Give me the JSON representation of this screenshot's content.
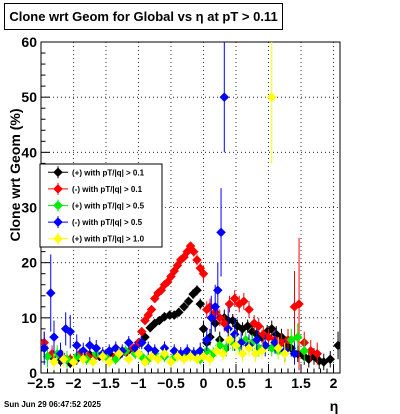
{
  "title": {
    "text": "Clone wrt Geom for Global vs    η  at pT > 0.11"
  },
  "footer": {
    "timestamp": "Sun Jun 29 06:47:52 2025"
  },
  "chart_data": {
    "type": "scatter",
    "title": "Clone wrt Geom for Global vs    η  at pT > 0.11",
    "xlabel": "η",
    "ylabel": "Clone wrt Geom (%)",
    "xlim": [
      -2.5,
      2.1
    ],
    "ylim": [
      0,
      60
    ],
    "x_ticks": [
      -2.5,
      -2,
      -1.5,
      -1,
      -0.5,
      0,
      0.5,
      1,
      1.5,
      2
    ],
    "x_tick_labels": [
      "−2.5",
      "−2",
      "−1.5",
      "−1",
      "−0.5",
      "0",
      "0.5",
      "1",
      "1.5",
      "2"
    ],
    "y_ticks": [
      0,
      10,
      20,
      30,
      40,
      50,
      60
    ],
    "y_tick_labels": [
      "0",
      "10",
      "20",
      "30",
      "40",
      "50",
      "60"
    ],
    "legend_position": "middle-left",
    "series": [
      {
        "name": "(+) with pT/|q| > 0.1",
        "color": "#000000",
        "points": [
          [
            -2.45,
            4.5,
            1.8
          ],
          [
            -2.33,
            3.0,
            1.2
          ],
          [
            -2.2,
            2.2,
            1.0
          ],
          [
            -2.05,
            1.8,
            0.9
          ],
          [
            -1.95,
            2.5,
            1.0
          ],
          [
            -1.85,
            3.0,
            1.0
          ],
          [
            -1.75,
            3.3,
            1.0
          ],
          [
            -1.6,
            3.0,
            0.8
          ],
          [
            -1.45,
            3.5,
            0.8
          ],
          [
            -1.3,
            3.2,
            0.8
          ],
          [
            -1.18,
            3.8,
            0.8
          ],
          [
            -1.07,
            4.3,
            0.8
          ],
          [
            -0.98,
            5.5,
            0.8
          ],
          [
            -0.9,
            6.5,
            0.8
          ],
          [
            -0.82,
            8.2,
            0.8
          ],
          [
            -0.75,
            9.0,
            0.8
          ],
          [
            -0.68,
            9.5,
            0.8
          ],
          [
            -0.6,
            10.2,
            0.8
          ],
          [
            -0.52,
            10.5,
            0.8
          ],
          [
            -0.45,
            10.5,
            0.8
          ],
          [
            -0.38,
            11.0,
            0.8
          ],
          [
            -0.3,
            12.0,
            0.8
          ],
          [
            -0.23,
            13.0,
            0.8
          ],
          [
            -0.16,
            14.3,
            0.9
          ],
          [
            -0.1,
            15.0,
            0.9
          ],
          [
            -0.05,
            12.5,
            1.0
          ],
          [
            0.0,
            8.0,
            1.5
          ],
          [
            0.05,
            5.5,
            1.5
          ],
          [
            0.1,
            6.5,
            1.5
          ],
          [
            0.18,
            9.0,
            1.5
          ],
          [
            0.25,
            6.0,
            1.5
          ],
          [
            0.32,
            10.0,
            1.5
          ],
          [
            0.38,
            9.5,
            1.2
          ],
          [
            0.45,
            9.5,
            1.2
          ],
          [
            0.52,
            8.5,
            1.2
          ],
          [
            0.6,
            8.0,
            1.2
          ],
          [
            0.68,
            8.5,
            1.2
          ],
          [
            0.75,
            7.5,
            1.2
          ],
          [
            0.82,
            7.0,
            1.2
          ],
          [
            0.9,
            6.5,
            1.2
          ],
          [
            0.98,
            7.5,
            1.2
          ],
          [
            1.05,
            8.0,
            1.5
          ],
          [
            1.12,
            7.0,
            1.5
          ],
          [
            1.2,
            6.5,
            1.5
          ],
          [
            1.28,
            5.0,
            1.5
          ],
          [
            1.35,
            4.5,
            1.5
          ],
          [
            1.45,
            3.5,
            1.5
          ],
          [
            1.55,
            3.0,
            1.5
          ],
          [
            1.62,
            2.5,
            1.5
          ],
          [
            1.7,
            3.0,
            1.5
          ],
          [
            1.78,
            2.2,
            1.5
          ],
          [
            1.85,
            2.0,
            1.5
          ],
          [
            1.95,
            2.5,
            1.5
          ],
          [
            2.07,
            5.0,
            2.5
          ]
        ]
      },
      {
        "name": "(-) with pT/|q| > 0.1",
        "color": "#ff0000",
        "points": [
          [
            -2.45,
            5.5,
            2.0
          ],
          [
            -2.33,
            3.5,
            1.5
          ],
          [
            -2.18,
            3.0,
            1.2
          ],
          [
            -2.05,
            2.5,
            1.0
          ],
          [
            -1.9,
            3.5,
            1.0
          ],
          [
            -1.78,
            3.0,
            1.0
          ],
          [
            -1.65,
            3.2,
            0.8
          ],
          [
            -1.5,
            3.5,
            0.8
          ],
          [
            -1.35,
            3.0,
            0.8
          ],
          [
            -1.2,
            3.8,
            0.8
          ],
          [
            -1.08,
            4.5,
            0.8
          ],
          [
            -1.0,
            5.5,
            0.8
          ],
          [
            -0.95,
            7.5,
            0.8
          ],
          [
            -0.9,
            9.5,
            0.8
          ],
          [
            -0.85,
            10.5,
            0.8
          ],
          [
            -0.8,
            11.5,
            0.8
          ],
          [
            -0.75,
            13.5,
            0.8
          ],
          [
            -0.7,
            14.5,
            0.8
          ],
          [
            -0.65,
            15.0,
            0.8
          ],
          [
            -0.6,
            16.0,
            0.8
          ],
          [
            -0.55,
            16.5,
            0.8
          ],
          [
            -0.5,
            17.5,
            0.8
          ],
          [
            -0.45,
            18.5,
            0.8
          ],
          [
            -0.4,
            19.5,
            0.8
          ],
          [
            -0.35,
            20.5,
            0.8
          ],
          [
            -0.3,
            21.0,
            0.8
          ],
          [
            -0.25,
            22.0,
            0.8
          ],
          [
            -0.2,
            23.0,
            0.8
          ],
          [
            -0.15,
            22.0,
            0.9
          ],
          [
            -0.1,
            20.5,
            1.0
          ],
          [
            -0.05,
            19.0,
            1.0
          ],
          [
            0.0,
            18.0,
            1.5
          ],
          [
            0.05,
            11.5,
            1.5
          ],
          [
            0.1,
            12.0,
            1.5
          ],
          [
            0.18,
            11.0,
            1.5
          ],
          [
            0.25,
            10.0,
            1.5
          ],
          [
            0.32,
            9.0,
            1.5
          ],
          [
            0.4,
            12.5,
            1.5
          ],
          [
            0.48,
            13.5,
            1.5
          ],
          [
            0.55,
            12.5,
            1.5
          ],
          [
            0.62,
            13.0,
            1.5
          ],
          [
            0.7,
            11.5,
            1.5
          ],
          [
            0.78,
            9.0,
            1.5
          ],
          [
            0.85,
            8.5,
            1.5
          ],
          [
            0.92,
            7.0,
            1.5
          ],
          [
            1.0,
            6.5,
            1.5
          ],
          [
            1.1,
            6.0,
            1.8
          ],
          [
            1.2,
            5.5,
            1.8
          ],
          [
            1.3,
            6.0,
            2.0
          ],
          [
            1.4,
            12.0,
            6.5
          ],
          [
            1.47,
            12.5,
            12.0
          ],
          [
            1.55,
            5.5,
            2.0
          ],
          [
            1.65,
            4.0,
            2.0
          ],
          [
            1.75,
            3.5,
            2.0
          ]
        ]
      },
      {
        "name": "(+) with pT/|q| > 0.5",
        "color": "#00ee00",
        "points": [
          [
            -2.4,
            3.0,
            2.0
          ],
          [
            -2.25,
            3.5,
            1.5
          ],
          [
            -2.1,
            2.5,
            1.5
          ],
          [
            -1.95,
            3.0,
            1.0
          ],
          [
            -1.8,
            2.5,
            1.0
          ],
          [
            -1.65,
            3.5,
            1.0
          ],
          [
            -1.5,
            3.0,
            1.0
          ],
          [
            -1.35,
            2.5,
            1.0
          ],
          [
            -1.2,
            4.0,
            1.0
          ],
          [
            -1.05,
            3.5,
            1.0
          ],
          [
            -0.95,
            3.0,
            1.0
          ],
          [
            -0.85,
            2.5,
            1.0
          ],
          [
            -0.75,
            3.5,
            1.0
          ],
          [
            -0.6,
            3.0,
            1.0
          ],
          [
            -0.45,
            2.8,
            1.0
          ],
          [
            -0.3,
            3.0,
            1.0
          ],
          [
            -0.15,
            3.5,
            1.0
          ],
          [
            -0.05,
            2.5,
            1.0
          ],
          [
            0.05,
            4.0,
            1.2
          ],
          [
            0.15,
            3.5,
            1.2
          ],
          [
            0.25,
            5.0,
            1.5
          ],
          [
            0.35,
            4.5,
            1.5
          ],
          [
            0.45,
            5.5,
            1.5
          ],
          [
            0.55,
            5.0,
            1.5
          ],
          [
            0.65,
            6.0,
            1.5
          ],
          [
            0.75,
            5.5,
            1.5
          ],
          [
            0.85,
            4.5,
            1.5
          ],
          [
            0.95,
            5.0,
            1.5
          ],
          [
            1.05,
            4.5,
            1.5
          ],
          [
            1.15,
            4.0,
            1.5
          ],
          [
            1.25,
            3.5,
            1.5
          ],
          [
            1.35,
            6.0,
            2.0
          ],
          [
            1.45,
            6.5,
            2.5
          ],
          [
            1.55,
            4.0,
            2.0
          ]
        ]
      },
      {
        "name": "(-) with pT/|q| > 0.5",
        "color": "#0000ff",
        "points": [
          [
            -2.45,
            4.5,
            3.0
          ],
          [
            -2.35,
            14.5,
            7.0
          ],
          [
            -2.3,
            6.5,
            3.0
          ],
          [
            -2.2,
            3.5,
            2.0
          ],
          [
            -2.12,
            8.0,
            3.0
          ],
          [
            -2.05,
            7.5,
            3.0
          ],
          [
            -1.95,
            5.0,
            2.0
          ],
          [
            -1.85,
            4.0,
            1.5
          ],
          [
            -1.75,
            5.0,
            1.5
          ],
          [
            -1.65,
            4.5,
            1.5
          ],
          [
            -1.55,
            3.5,
            1.2
          ],
          [
            -1.45,
            4.0,
            1.2
          ],
          [
            -1.35,
            4.5,
            1.2
          ],
          [
            -1.25,
            4.0,
            1.2
          ],
          [
            -1.15,
            5.5,
            1.2
          ],
          [
            -1.05,
            4.5,
            1.2
          ],
          [
            -0.95,
            5.5,
            1.2
          ],
          [
            -0.85,
            4.5,
            1.2
          ],
          [
            -0.75,
            4.0,
            1.2
          ],
          [
            -0.6,
            4.5,
            1.2
          ],
          [
            -0.45,
            4.0,
            1.2
          ],
          [
            -0.35,
            3.5,
            1.2
          ],
          [
            -0.25,
            4.0,
            1.2
          ],
          [
            -0.15,
            3.5,
            1.2
          ],
          [
            -0.05,
            4.0,
            1.5
          ],
          [
            0.05,
            6.0,
            2.0
          ],
          [
            0.12,
            10.0,
            4.0
          ],
          [
            0.18,
            12.0,
            4.0
          ],
          [
            0.22,
            15.0,
            5.0
          ],
          [
            0.27,
            25.5,
            8.0
          ],
          [
            0.32,
            50.0,
            10.0
          ],
          [
            0.38,
            8.0,
            4.0
          ],
          [
            0.48,
            7.0,
            3.0
          ],
          [
            0.58,
            5.5,
            2.0
          ],
          [
            0.7,
            5.0,
            2.0
          ],
          [
            0.82,
            6.0,
            2.0
          ],
          [
            0.95,
            5.0,
            2.0
          ],
          [
            1.1,
            5.5,
            2.0
          ],
          [
            1.25,
            4.0,
            2.0
          ],
          [
            1.4,
            3.5,
            2.0
          ]
        ]
      },
      {
        "name": "(+) with pT/|q| > 1.0",
        "color": "#ffff00",
        "points": [
          [
            -2.3,
            2.0,
            1.5
          ],
          [
            -2.15,
            2.5,
            1.5
          ],
          [
            -2.0,
            2.0,
            1.2
          ],
          [
            -1.85,
            2.5,
            1.2
          ],
          [
            -1.7,
            2.0,
            1.0
          ],
          [
            -1.55,
            3.0,
            1.0
          ],
          [
            -1.45,
            2.0,
            1.0
          ],
          [
            -1.3,
            3.5,
            1.0
          ],
          [
            -1.15,
            2.5,
            1.0
          ],
          [
            -1.0,
            3.5,
            1.0
          ],
          [
            -0.9,
            2.0,
            1.0
          ],
          [
            -0.8,
            3.0,
            1.0
          ],
          [
            -0.7,
            2.5,
            1.0
          ],
          [
            -0.6,
            3.5,
            1.0
          ],
          [
            -0.5,
            2.0,
            1.0
          ],
          [
            -0.4,
            3.0,
            1.0
          ],
          [
            -0.3,
            2.5,
            1.0
          ],
          [
            -0.2,
            3.0,
            1.0
          ],
          [
            -0.1,
            2.5,
            1.0
          ],
          [
            0.0,
            3.0,
            1.0
          ],
          [
            0.1,
            2.5,
            1.2
          ],
          [
            0.2,
            4.0,
            1.2
          ],
          [
            0.3,
            3.5,
            1.2
          ],
          [
            0.4,
            6.0,
            2.0
          ],
          [
            0.5,
            5.0,
            2.0
          ],
          [
            0.6,
            3.5,
            1.5
          ],
          [
            0.7,
            4.5,
            1.5
          ],
          [
            0.8,
            3.5,
            1.5
          ],
          [
            0.9,
            4.0,
            1.5
          ],
          [
            1.05,
            50.0,
            12.0
          ],
          [
            1.15,
            4.5,
            2.0
          ],
          [
            1.25,
            3.5,
            2.0
          ]
        ]
      }
    ]
  }
}
